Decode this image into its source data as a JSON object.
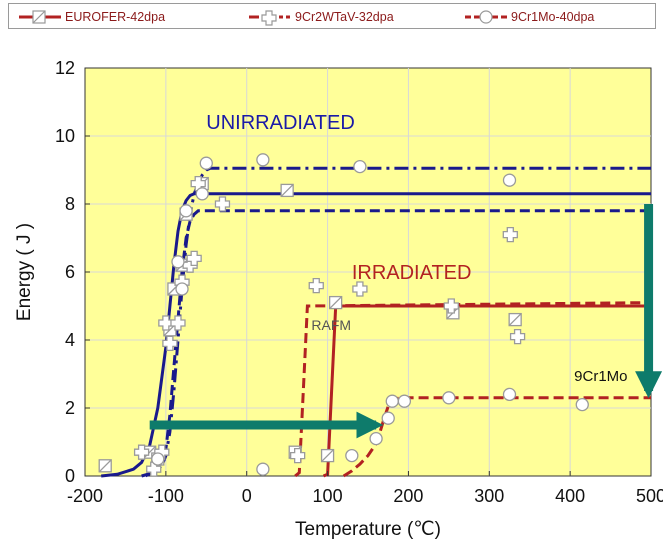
{
  "chart_data": {
    "type": "line",
    "xlabel": "Temperature (℃)",
    "ylabel": "Energy ( J )",
    "xlim": [
      -200,
      500
    ],
    "ylim": [
      0,
      12
    ],
    "xticks": [
      -200,
      -100,
      0,
      100,
      200,
      300,
      400,
      500
    ],
    "yticks": [
      0,
      2,
      4,
      6,
      8,
      10,
      12
    ],
    "xtick_labels": [
      "-200",
      "-100",
      "0",
      "100",
      "200",
      "300",
      "400",
      "500"
    ],
    "ytick_labels": [
      "0",
      "2",
      "4",
      "6",
      "8",
      "10",
      "12"
    ],
    "grid": true,
    "background": "#ffff99",
    "legend_position": "top",
    "legend": [
      {
        "label": "EUROFER-42dpa",
        "marker": "square",
        "style": "solid"
      },
      {
        "label": "9Cr2WTaV-32dpa",
        "marker": "cross",
        "style": "dash-dot"
      },
      {
        "label": "9Cr1Mo-40dpa",
        "marker": "circle",
        "style": "dash"
      }
    ],
    "annotations": [
      {
        "text": "UNIRRADIATED",
        "x": -50,
        "y": 10.2,
        "color": "#1a1aa8"
      },
      {
        "text": "IRRADIATED",
        "x": 130,
        "y": 5.8,
        "color": "#b22222"
      },
      {
        "text": "RAFM",
        "x": 80,
        "y": 4.3,
        "color": "#555555"
      },
      {
        "text": "9Cr1Mo",
        "x": 405,
        "y": 2.8,
        "color": "#111111"
      }
    ],
    "arrows": [
      {
        "from": [
          -120,
          1.5
        ],
        "to": [
          160,
          1.5
        ],
        "color": "#0e7b6b"
      },
      {
        "from": [
          497,
          8.0
        ],
        "to": [
          497,
          2.5
        ],
        "color": "#0e7b6b"
      }
    ],
    "series": [
      {
        "name": "EUROFER-42dpa",
        "condition": "unirradiated",
        "color": "#1a1a8c",
        "style": "solid",
        "curve_x": [
          -180,
          -160,
          -140,
          -130,
          -120,
          -110,
          -100,
          -95,
          -90,
          -85,
          -80,
          -75,
          -70,
          -65,
          -60,
          500
        ],
        "curve_y": [
          0,
          0.05,
          0.2,
          0.4,
          0.9,
          2.0,
          3.8,
          5.0,
          6.2,
          7.2,
          7.8,
          8.1,
          8.25,
          8.3,
          8.3,
          8.3
        ],
        "points_x": [
          -175,
          -120,
          -110,
          -95,
          -90,
          -80,
          -75,
          -55,
          50
        ],
        "points_y": [
          0.3,
          0.7,
          0.5,
          4.3,
          5.5,
          6.2,
          7.7,
          8.6,
          8.4
        ]
      },
      {
        "name": "EUROFER-42dpa",
        "condition": "irradiated",
        "color": "#b22222",
        "style": "solid",
        "curve_x": [
          95,
          100,
          105,
          110,
          500
        ],
        "curve_y": [
          0,
          0.05,
          2.5,
          5.0,
          5.0
        ],
        "points_x": [
          60,
          100,
          110,
          255,
          332
        ],
        "points_y": [
          0.7,
          0.6,
          5.1,
          4.8,
          4.6
        ]
      },
      {
        "name": "9Cr2WTaV-32dpa",
        "condition": "unirradiated",
        "color": "#1a1a8c",
        "style": "dash-dot",
        "curve_x": [
          -130,
          -115,
          -105,
          -100,
          -95,
          -90,
          -85,
          -80,
          -75,
          -70,
          -65,
          -60,
          -55,
          -50,
          -45,
          500
        ],
        "curve_y": [
          0,
          0.1,
          0.3,
          0.6,
          1.3,
          2.5,
          4.0,
          5.5,
          6.8,
          7.7,
          8.3,
          8.6,
          8.85,
          9.0,
          9.05,
          9.05
        ],
        "points_x": [
          -130,
          -115,
          -105,
          -100,
          -95,
          -85,
          -80,
          -70,
          -65,
          -60,
          -30,
          326
        ],
        "points_y": [
          0.7,
          0.2,
          0.7,
          4.5,
          3.9,
          4.5,
          5.7,
          6.2,
          6.4,
          8.6,
          8.0,
          7.1
        ]
      },
      {
        "name": "9Cr2WTaV-32dpa",
        "condition": "irradiated",
        "color": "#b22222",
        "style": "dash",
        "curve_x": [
          60,
          65,
          70,
          75,
          500
        ],
        "curve_y": [
          0,
          0.1,
          2.5,
          5.0,
          5.1
        ],
        "points_x": [
          63,
          86,
          140,
          253,
          335
        ],
        "points_y": [
          0.6,
          5.6,
          5.5,
          5.0,
          4.1
        ]
      },
      {
        "name": "9Cr1Mo-40dpa",
        "condition": "unirradiated",
        "color": "#1a1a8c",
        "style": "dash",
        "curve_x": [
          -125,
          -110,
          -100,
          -95,
          -90,
          -85,
          -80,
          -75,
          -70,
          -65,
          -60,
          -55,
          -50,
          500
        ],
        "curve_y": [
          0,
          0.2,
          0.8,
          1.8,
          3.2,
          4.6,
          6.0,
          7.0,
          7.5,
          7.7,
          7.8,
          7.8,
          7.8,
          7.8
        ],
        "points_x": [
          -110,
          -80,
          -85,
          -75,
          -55,
          -50,
          20,
          140,
          325
        ],
        "points_y": [
          0.5,
          5.5,
          6.3,
          7.8,
          8.3,
          9.2,
          9.3,
          9.1,
          8.7
        ]
      },
      {
        "name": "9Cr1Mo-40dpa",
        "condition": "irradiated",
        "color": "#b22222",
        "style": "dash",
        "curve_x": [
          120,
          130,
          140,
          150,
          160,
          165,
          170,
          175,
          180,
          190,
          200,
          500
        ],
        "curve_y": [
          0,
          0.15,
          0.35,
          0.6,
          0.95,
          1.3,
          1.7,
          2.05,
          2.25,
          2.3,
          2.3,
          2.3
        ],
        "points_x": [
          20,
          130,
          160,
          175,
          180,
          195,
          250,
          325,
          415
        ],
        "points_y": [
          0.2,
          0.6,
          1.1,
          1.7,
          2.2,
          2.2,
          2.3,
          2.4,
          2.1
        ]
      }
    ]
  }
}
